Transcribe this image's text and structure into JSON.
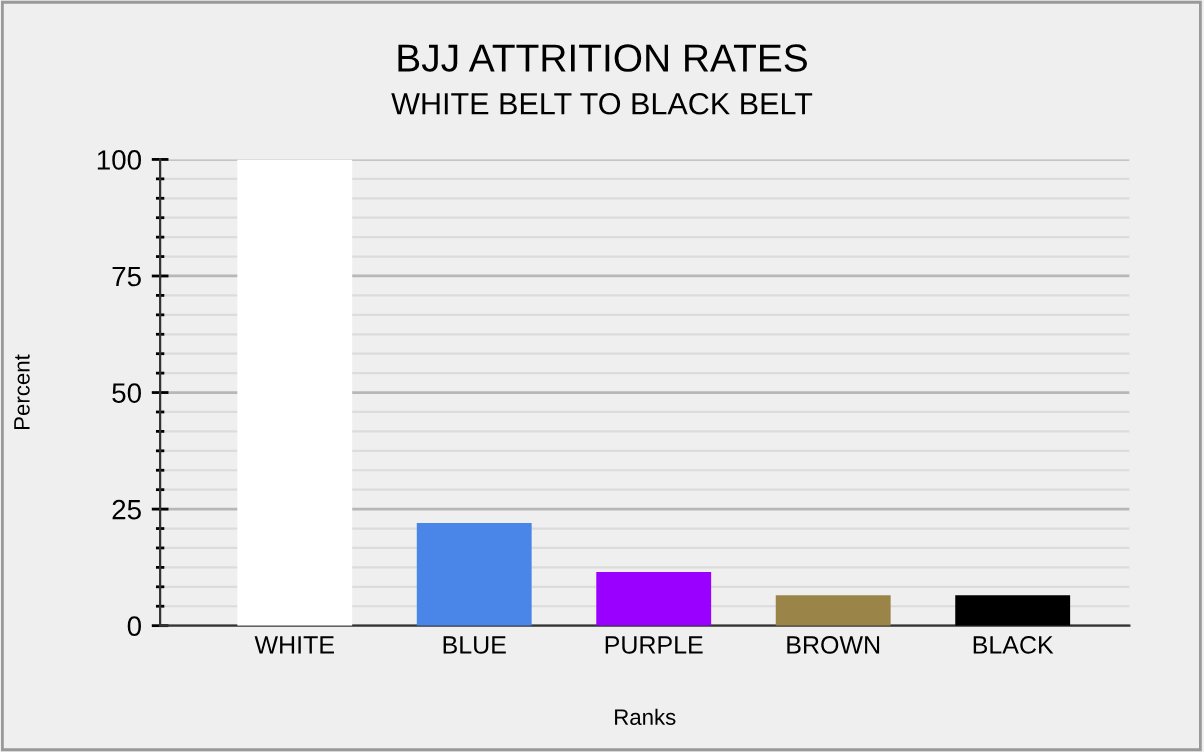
{
  "chart_data": {
    "type": "bar",
    "title": "BJJ ATTRITION RATES",
    "subtitle": "WHITE BELT TO BLACK BELT",
    "xlabel": "Ranks",
    "ylabel": "Percent",
    "categories": [
      "WHITE",
      "BLUE",
      "PURPLE",
      "BROWN",
      "BLACK"
    ],
    "values": [
      100,
      22,
      11.5,
      6.5,
      6.5
    ],
    "colors": [
      "#ffffff",
      "#4a86e8",
      "#9900ff",
      "#9a8447",
      "#000000"
    ],
    "ylim": [
      0,
      100
    ],
    "yticks": [
      0,
      25,
      50,
      75,
      100
    ],
    "grid": "y",
    "legend": false
  }
}
